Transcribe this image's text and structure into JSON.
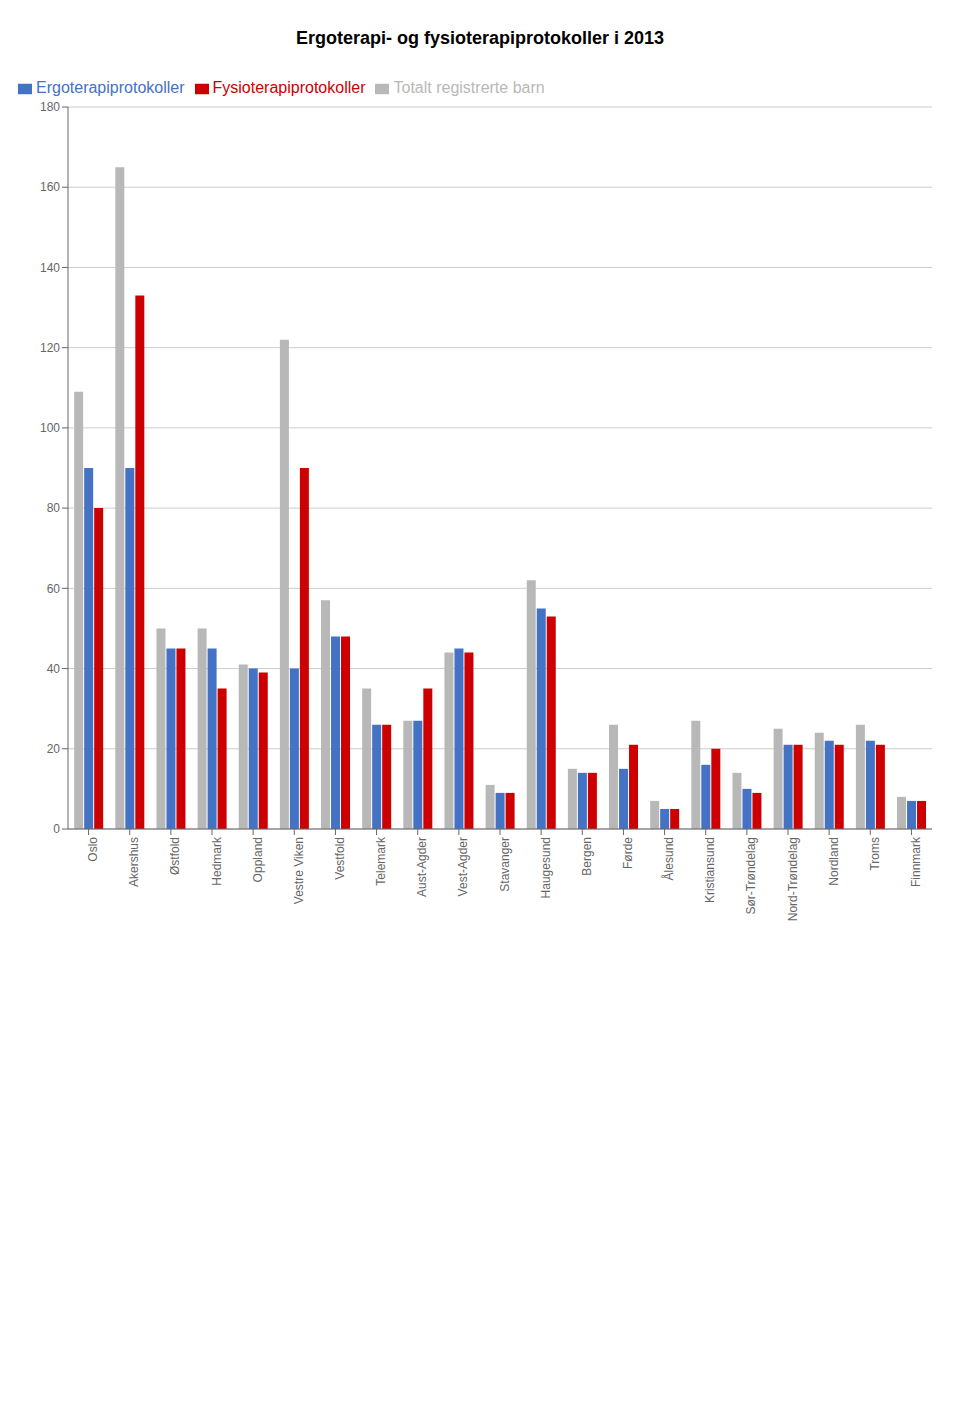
{
  "chart_data": {
    "type": "bar",
    "title": "Ergoterapi- og fysioterapiprotokoller i 2013",
    "categories": [
      "Oslo",
      "Akershus",
      "Østfold",
      "Hedmark",
      "Oppland",
      "Vestre Viken",
      "Vestfold",
      "Telemark",
      "Aust-Agder",
      "Vest-Agder",
      "Stavanger",
      "Haugesund",
      "Bergen",
      "Førde",
      "Ålesund",
      "Kristiansund",
      "Sør-Trøndelag",
      "Nord-Trøndelag",
      "Nordland",
      "Troms",
      "Finnmark"
    ],
    "series": [
      {
        "name": "Totalt registrerte barn",
        "color": "#b8b8b8",
        "values": [
          109,
          165,
          50,
          50,
          41,
          122,
          57,
          35,
          27,
          44,
          11,
          62,
          15,
          26,
          7,
          27,
          14,
          25,
          24,
          26,
          8
        ]
      },
      {
        "name": "Ergoterapiprotokoller",
        "color": "#4472c4",
        "values": [
          90,
          90,
          45,
          45,
          40,
          40,
          48,
          26,
          27,
          45,
          9,
          55,
          14,
          15,
          5,
          16,
          10,
          21,
          22,
          22,
          7
        ]
      },
      {
        "name": "Fysioterapiprotokoller",
        "color": "#cc0000",
        "values": [
          80,
          133,
          45,
          35,
          39,
          90,
          48,
          26,
          35,
          44,
          9,
          53,
          14,
          21,
          5,
          20,
          9,
          21,
          21,
          21,
          7
        ]
      }
    ],
    "ylim": [
      0,
      180
    ],
    "yticks": [
      0,
      20,
      40,
      60,
      80,
      100,
      120,
      140,
      160,
      180
    ],
    "grid": true,
    "legend": "top-left"
  }
}
